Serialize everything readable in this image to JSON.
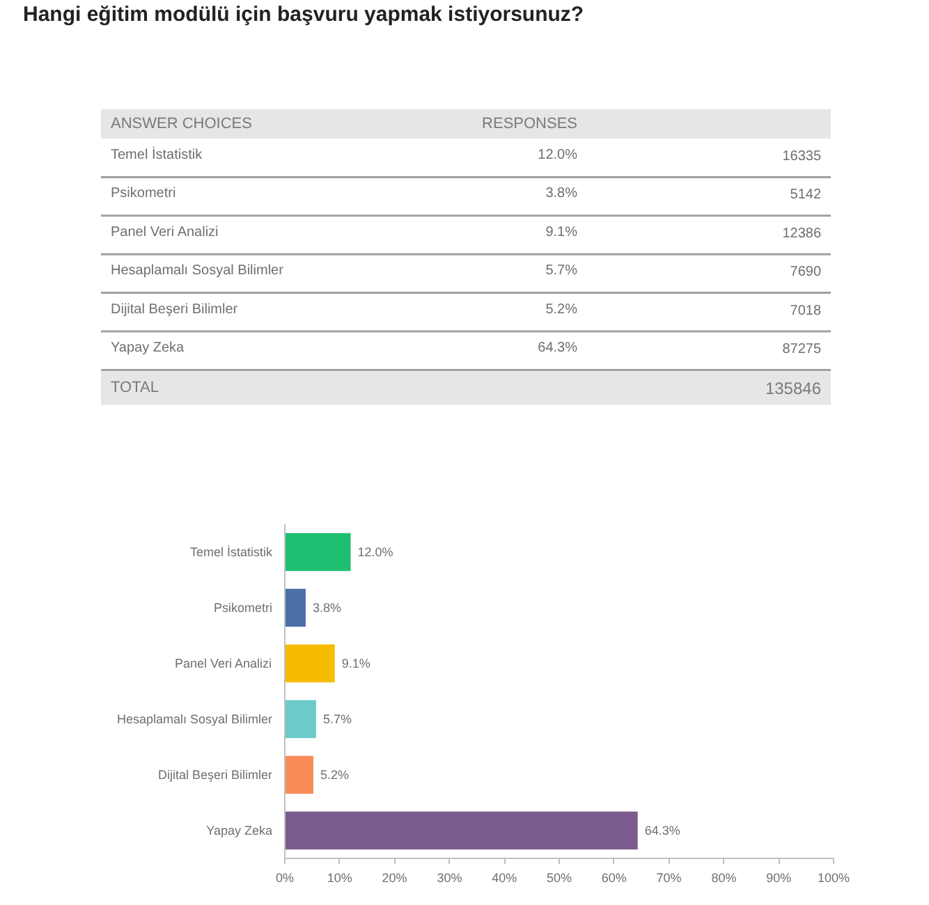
{
  "chart_data": [
    {
      "type": "other",
      "title": "Hangi eğitim modülü için başvuru yapmak istiyorsunuz?",
      "xlabel": "ANSWER CHOICES",
      "ylabel": "RESPONSES",
      "data_labels": true,
      "categories": [
        "Temel İstatistik",
        "Psikometri",
        "Panel Veri Analizi",
        "Hesaplamalı Sosyal Bilimler",
        "Dijital Beşeri Bilimler",
        "Yapay Zeka"
      ],
      "series": [
        {
          "values": [
            12.0,
            3.8,
            9.1,
            5.7,
            5.2,
            64.3
          ],
          "value_labels": [
            "12.0%",
            "3.8%",
            "9.1%",
            "5.7%",
            "5.2%",
            "64.3%"
          ]
        },
        {
          "values": [
            16335,
            5142,
            12386,
            7690,
            7018,
            87275
          ]
        }
      ],
      "annotations": [
        "TOTAL",
        "135846"
      ]
    },
    {
      "type": "bar",
      "orientation": "horizontal",
      "categories": [
        "Temel İstatistik",
        "Psikometri",
        "Panel Veri Analizi",
        "Hesaplamalı Sosyal Bilimler",
        "Dijital Beşeri Bilimler",
        "Yapay Zeka"
      ],
      "values": [
        12.0,
        3.8,
        9.1,
        5.7,
        5.2,
        64.3
      ],
      "colors": [
        "#1fbf72",
        "#4b6fa6",
        "#f6bc00",
        "#6ccaca",
        "#f98b57",
        "#7b5b8f"
      ],
      "value_labels": [
        "12.0%",
        "3.8%",
        "9.1%",
        "5.7%",
        "5.2%",
        "64.3%"
      ],
      "xlim": [
        0,
        100
      ],
      "xticks": [
        {
          "value": 0,
          "label": "0%"
        },
        {
          "value": 10,
          "label": "10%"
        },
        {
          "value": 20,
          "label": "20%"
        },
        {
          "value": 30,
          "label": "30%"
        },
        {
          "value": 40,
          "label": "40%"
        },
        {
          "value": 50,
          "label": "50%"
        },
        {
          "value": 60,
          "label": "60%"
        },
        {
          "value": 70,
          "label": "70%"
        },
        {
          "value": 80,
          "label": "80%"
        },
        {
          "value": 90,
          "label": "90%"
        },
        {
          "value": 100,
          "label": "100%"
        }
      ]
    }
  ]
}
